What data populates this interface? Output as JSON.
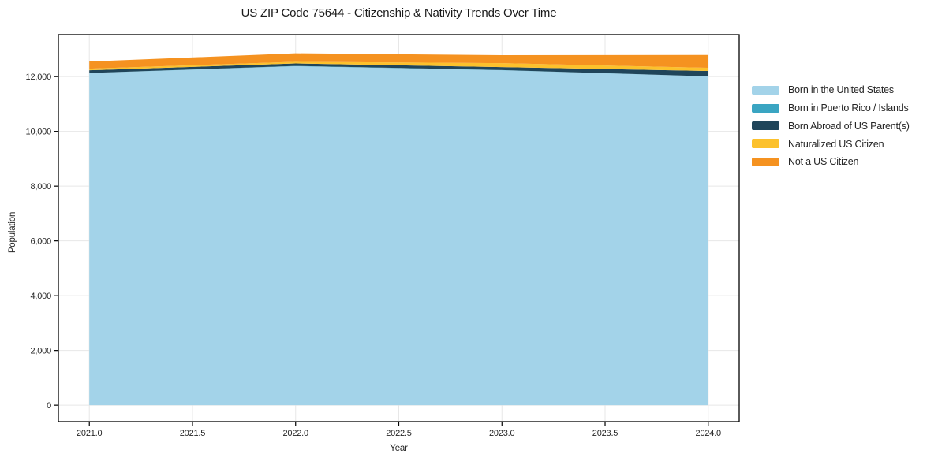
{
  "chart_data": {
    "type": "area",
    "stacked": true,
    "title": "US ZIP Code 75644 - Citizenship & Nativity Trends Over Time",
    "xlabel": "Year",
    "ylabel": "Population",
    "x": [
      2021,
      2022,
      2023,
      2024
    ],
    "series": [
      {
        "name": "Born in the United States",
        "color": "#a3d3e9",
        "values": [
          12130,
          12380,
          12230,
          12010
        ]
      },
      {
        "name": "Born in Puerto Rico / Islands",
        "color": "#3aa5c2",
        "values": [
          0,
          10,
          10,
          0
        ]
      },
      {
        "name": "Born Abroad of US Parent(s)",
        "color": "#20455a",
        "values": [
          100,
          90,
          105,
          195
        ]
      },
      {
        "name": "Naturalized US Citizen",
        "color": "#fcc12c",
        "values": [
          60,
          60,
          145,
          115
        ]
      },
      {
        "name": "Not a US Citizen",
        "color": "#f59220",
        "values": [
          260,
          310,
          290,
          470
        ]
      }
    ],
    "xlim": [
      2020.85,
      2024.15
    ],
    "ylim": [
      -600,
      13530
    ],
    "xticks": {
      "values": [
        2021.0,
        2021.5,
        2022.0,
        2022.5,
        2023.0,
        2023.5,
        2024.0
      ],
      "labels": [
        "2021.0",
        "2021.5",
        "2022.0",
        "2022.5",
        "2023.0",
        "2023.5",
        "2024.0"
      ]
    },
    "yticks": {
      "values": [
        0,
        2000,
        4000,
        6000,
        8000,
        10000,
        12000
      ],
      "labels": [
        "0",
        "2,000",
        "4,000",
        "6,000",
        "8,000",
        "10,000",
        "12,000"
      ]
    },
    "grid": true,
    "grid_color": "#e7e7e7",
    "spine_color": "#000000",
    "legend_position": "right-outside"
  }
}
